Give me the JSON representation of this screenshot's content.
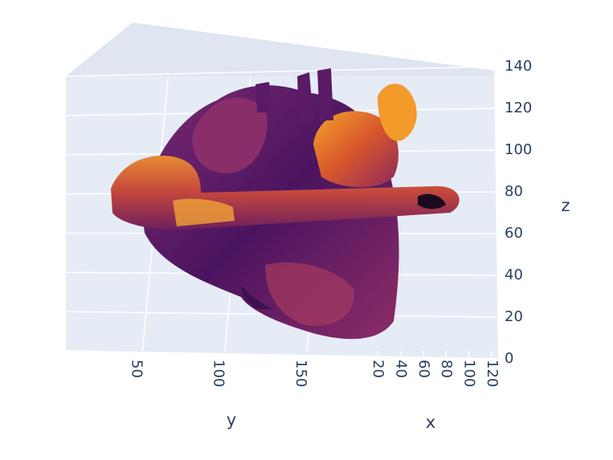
{
  "chart_data": {
    "type": "volume3d",
    "colorscale": "Inferno",
    "x_title": "x",
    "y_title": "y",
    "z_title": "z",
    "xlim": [
      10,
      125
    ],
    "xticks": [
      20,
      40,
      60,
      80,
      100,
      120
    ],
    "ylim": [
      0,
      190
    ],
    "yticks": [
      50,
      100,
      150
    ],
    "zlim": [
      0,
      140
    ],
    "zticks": [
      0,
      20,
      40,
      60,
      80,
      100,
      120,
      140
    ],
    "grid": true
  }
}
